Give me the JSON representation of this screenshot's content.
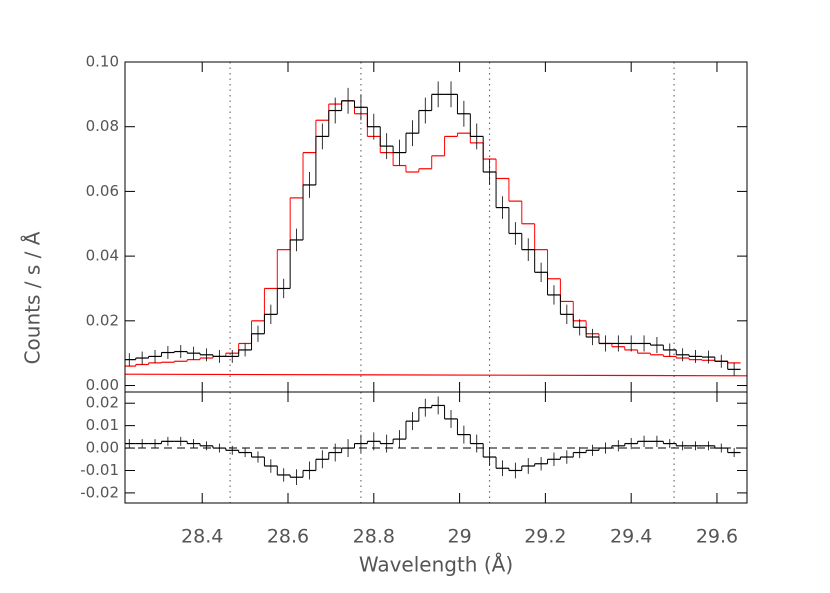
{
  "chart_data": [
    {
      "type": "step",
      "ylabel": "Counts / s / Å",
      "x": [
        28.23,
        28.26,
        28.29,
        28.32,
        28.35,
        28.38,
        28.41,
        28.44,
        28.47,
        28.5,
        28.53,
        28.56,
        28.59,
        28.62,
        28.65,
        28.68,
        28.71,
        28.74,
        28.77,
        28.8,
        28.83,
        28.86,
        28.89,
        28.92,
        28.95,
        28.98,
        29.01,
        29.04,
        29.07,
        29.1,
        29.13,
        29.16,
        29.19,
        29.22,
        29.25,
        29.28,
        29.31,
        29.34,
        29.37,
        29.4,
        29.43,
        29.46,
        29.49,
        29.52,
        29.55,
        29.58,
        29.61,
        29.64
      ],
      "values": [
        0.008,
        0.0085,
        0.009,
        0.0102,
        0.0105,
        0.01,
        0.0095,
        0.009,
        0.009,
        0.011,
        0.016,
        0.022,
        0.03,
        0.045,
        0.062,
        0.077,
        0.085,
        0.088,
        0.086,
        0.08,
        0.074,
        0.072,
        0.078,
        0.085,
        0.09,
        0.09,
        0.084,
        0.077,
        0.066,
        0.055,
        0.047,
        0.042,
        0.035,
        0.028,
        0.022,
        0.018,
        0.015,
        0.013,
        0.013,
        0.013,
        0.013,
        0.0125,
        0.011,
        0.0095,
        0.009,
        0.0088,
        0.0075,
        0.005
      ],
      "errors": [
        0.002,
        0.002,
        0.002,
        0.002,
        0.002,
        0.002,
        0.002,
        0.002,
        0.002,
        0.002,
        0.0025,
        0.003,
        0.003,
        0.0035,
        0.004,
        0.004,
        0.004,
        0.004,
        0.004,
        0.004,
        0.004,
        0.004,
        0.004,
        0.004,
        0.004,
        0.004,
        0.004,
        0.004,
        0.004,
        0.0035,
        0.0035,
        0.0035,
        0.003,
        0.003,
        0.003,
        0.0025,
        0.0025,
        0.0025,
        0.0025,
        0.0025,
        0.0025,
        0.0025,
        0.002,
        0.002,
        0.002,
        0.002,
        0.002,
        0.002
      ],
      "color": "#000000",
      "model": {
        "color": "#ff0000",
        "values": [
          0.006,
          0.0065,
          0.007,
          0.0072,
          0.0075,
          0.008,
          0.0085,
          0.009,
          0.01,
          0.013,
          0.02,
          0.03,
          0.042,
          0.058,
          0.072,
          0.082,
          0.087,
          0.088,
          0.084,
          0.077,
          0.072,
          0.068,
          0.066,
          0.067,
          0.071,
          0.077,
          0.078,
          0.075,
          0.07,
          0.064,
          0.057,
          0.05,
          0.042,
          0.033,
          0.026,
          0.02,
          0.016,
          0.013,
          0.012,
          0.011,
          0.01,
          0.0095,
          0.009,
          0.0085,
          0.008,
          0.0078,
          0.0075,
          0.007
        ]
      },
      "continuum": {
        "color": "#ff0000",
        "x": [
          28.22,
          29.67
        ],
        "values": [
          0.0035,
          0.003
        ]
      },
      "vlines": [
        28.465,
        28.77,
        29.07,
        29.5
      ],
      "xlim": [
        28.22,
        29.67
      ],
      "ylim": [
        -0.002,
        0.1
      ],
      "yticks": [
        {
          "value": 0,
          "label": "0.00"
        },
        {
          "value": 0.02,
          "label": "0.02"
        },
        {
          "value": 0.04,
          "label": "0.04"
        },
        {
          "value": 0.06,
          "label": "0.06"
        },
        {
          "value": 0.08,
          "label": "0.08"
        },
        {
          "value": 0.1,
          "label": "0.10"
        }
      ]
    },
    {
      "type": "step",
      "xlabel": "Wavelength (Å)",
      "x": [
        28.23,
        28.26,
        28.29,
        28.32,
        28.35,
        28.38,
        28.41,
        28.44,
        28.47,
        28.5,
        28.53,
        28.56,
        28.59,
        28.62,
        28.65,
        28.68,
        28.71,
        28.74,
        28.77,
        28.8,
        28.83,
        28.86,
        28.89,
        28.92,
        28.95,
        28.98,
        29.01,
        29.04,
        29.07,
        29.1,
        29.13,
        29.16,
        29.19,
        29.22,
        29.25,
        29.28,
        29.31,
        29.34,
        29.37,
        29.4,
        29.43,
        29.46,
        29.49,
        29.52,
        29.55,
        29.58,
        29.61,
        29.64
      ],
      "values": [
        0.002,
        0.002,
        0.002,
        0.003,
        0.003,
        0.002,
        0.001,
        0,
        -0.001,
        -0.002,
        -0.004,
        -0.008,
        -0.012,
        -0.013,
        -0.01,
        -0.005,
        -0.002,
        0,
        0.002,
        0.003,
        0.002,
        0.004,
        0.012,
        0.018,
        0.019,
        0.013,
        0.006,
        0.002,
        -0.004,
        -0.009,
        -0.01,
        -0.008,
        -0.007,
        -0.005,
        -0.004,
        -0.002,
        -0.001,
        0,
        0.001,
        0.002,
        0.003,
        0.003,
        0.002,
        0.001,
        0.001,
        0.001,
        0,
        -0.002
      ],
      "errors": [
        0.002,
        0.002,
        0.002,
        0.002,
        0.002,
        0.002,
        0.002,
        0.002,
        0.002,
        0.002,
        0.0025,
        0.003,
        0.003,
        0.0035,
        0.004,
        0.004,
        0.004,
        0.004,
        0.004,
        0.004,
        0.004,
        0.004,
        0.004,
        0.004,
        0.004,
        0.004,
        0.004,
        0.004,
        0.004,
        0.0035,
        0.0035,
        0.0035,
        0.003,
        0.003,
        0.003,
        0.0025,
        0.0025,
        0.0025,
        0.0025,
        0.0025,
        0.0025,
        0.0025,
        0.002,
        0.002,
        0.002,
        0.002,
        0.002,
        0.002
      ],
      "color": "#000000",
      "hline": 0,
      "vlines": [
        28.465,
        28.77,
        29.07,
        29.5
      ],
      "xlim": [
        28.22,
        29.67
      ],
      "ylim": [
        -0.0245,
        0.025
      ],
      "xticks": [
        28.4,
        28.6,
        28.8,
        29.0,
        29.2,
        29.4,
        29.6
      ],
      "yticks": [
        {
          "value": -0.02,
          "label": "-0.02"
        },
        {
          "value": -0.01,
          "label": "-0.01"
        },
        {
          "value": 0,
          "label": "0.00"
        },
        {
          "value": 0.01,
          "label": "0.01"
        },
        {
          "value": 0.02,
          "label": "0.02"
        }
      ]
    }
  ]
}
